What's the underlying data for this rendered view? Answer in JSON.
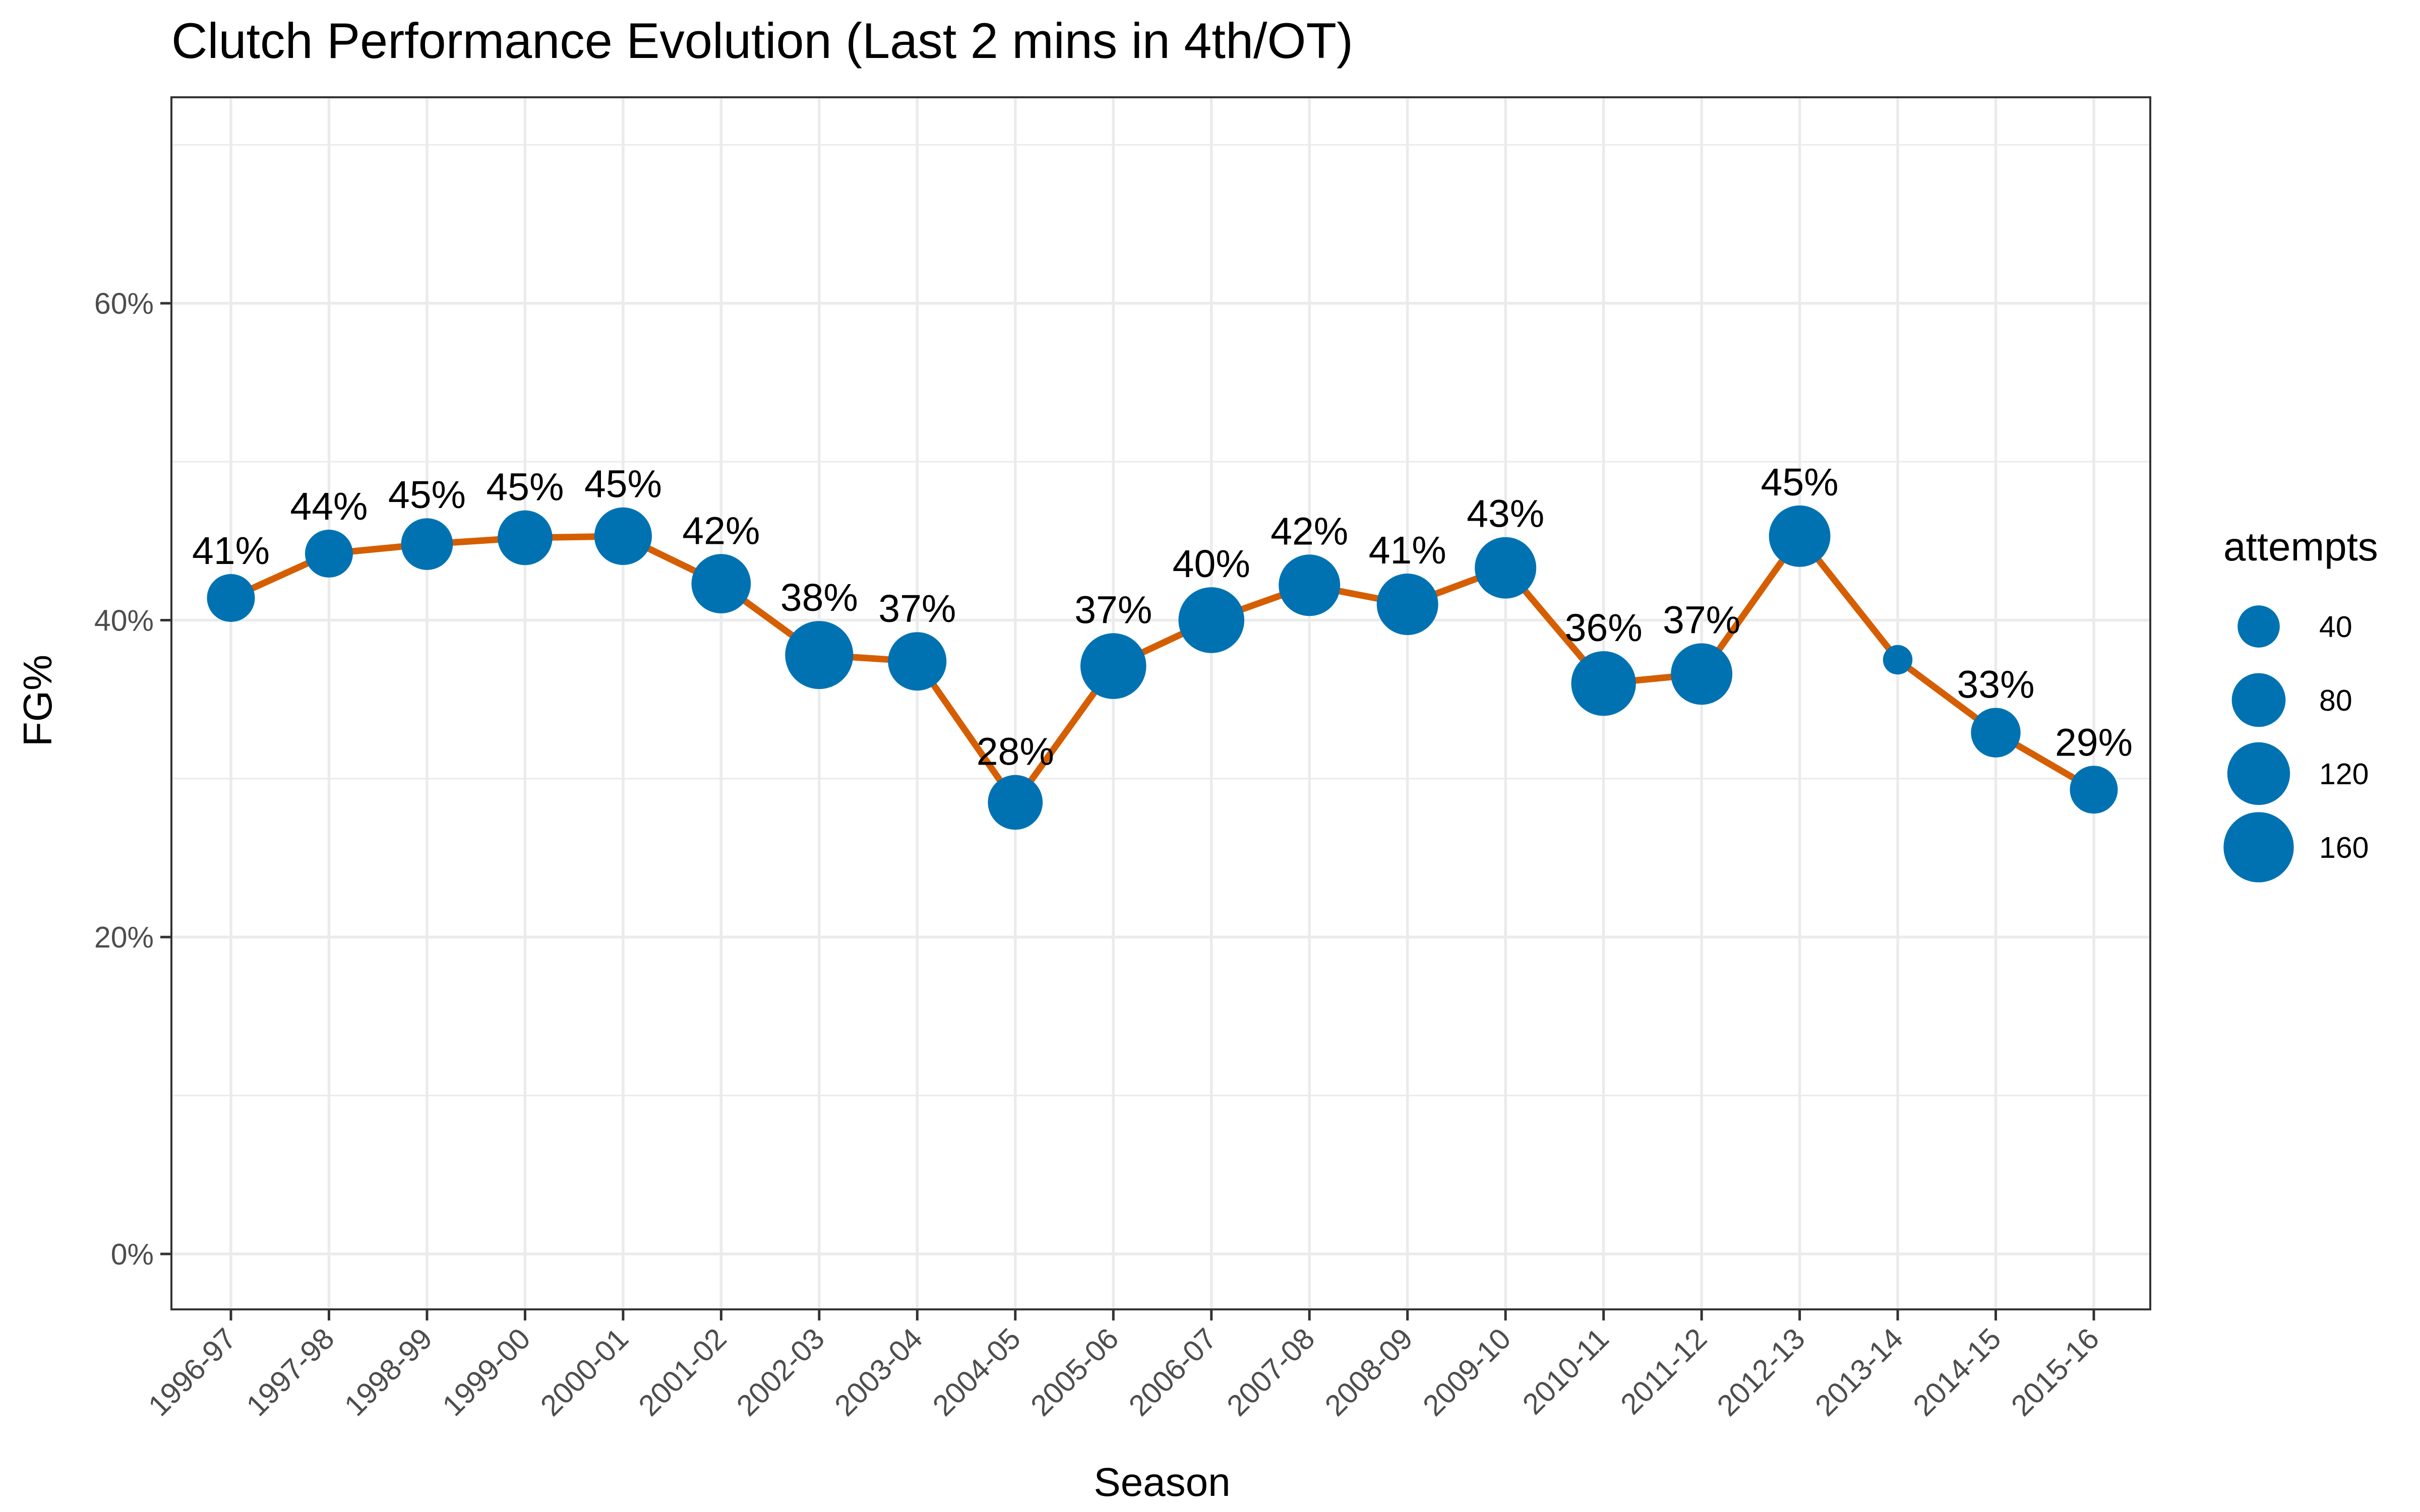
{
  "chart_data": {
    "type": "line",
    "title": "Clutch Performance Evolution (Last 2 mins in 4th/OT)",
    "xlabel": "Season",
    "ylabel": "FG%",
    "categories": [
      "1996-97",
      "1997-98",
      "1998-99",
      "1999-00",
      "2000-01",
      "2001-02",
      "2002-03",
      "2003-04",
      "2004-05",
      "2005-06",
      "2006-07",
      "2007-08",
      "2008-09",
      "2009-10",
      "2010-11",
      "2011-12",
      "2012-13",
      "2013-14",
      "2014-15",
      "2015-16"
    ],
    "series": [
      {
        "values": [
          41.4,
          44.2,
          44.8,
          45.2,
          45.3,
          42.3,
          37.8,
          37.4,
          28.5,
          37.1,
          40.0,
          42.2,
          41.0,
          43.3,
          36.0,
          36.6,
          45.3,
          37.5,
          32.9,
          29.3
        ],
        "labels": [
          "41%",
          "44%",
          "45%",
          "45%",
          "45%",
          "42%",
          "38%",
          "37%",
          "28%",
          "37%",
          "40%",
          "42%",
          "41%",
          "43%",
          "36%",
          "37%",
          "45%",
          "",
          "33%",
          "29%"
        ],
        "attempts": [
          58,
          58,
          72,
          84,
          96,
          104,
          148,
          100,
          84,
          136,
          136,
          114,
          114,
          114,
          130,
          114,
          114,
          12,
          64,
          58
        ]
      }
    ],
    "ylim": [
      -3.5,
      73
    ],
    "yticks": [
      0,
      20,
      40,
      60
    ],
    "yticklabels": [
      "0%",
      "20%",
      "40%",
      "60%"
    ],
    "grid": true,
    "line_color": "#D55E00",
    "point_color": "#0072B2",
    "legend": {
      "title": "attempts",
      "position": "right",
      "entries": [
        {
          "label": "40",
          "value": 40
        },
        {
          "label": "80",
          "value": 80
        },
        {
          "label": "120",
          "value": 120
        },
        {
          "label": "160",
          "value": 160
        }
      ]
    }
  }
}
